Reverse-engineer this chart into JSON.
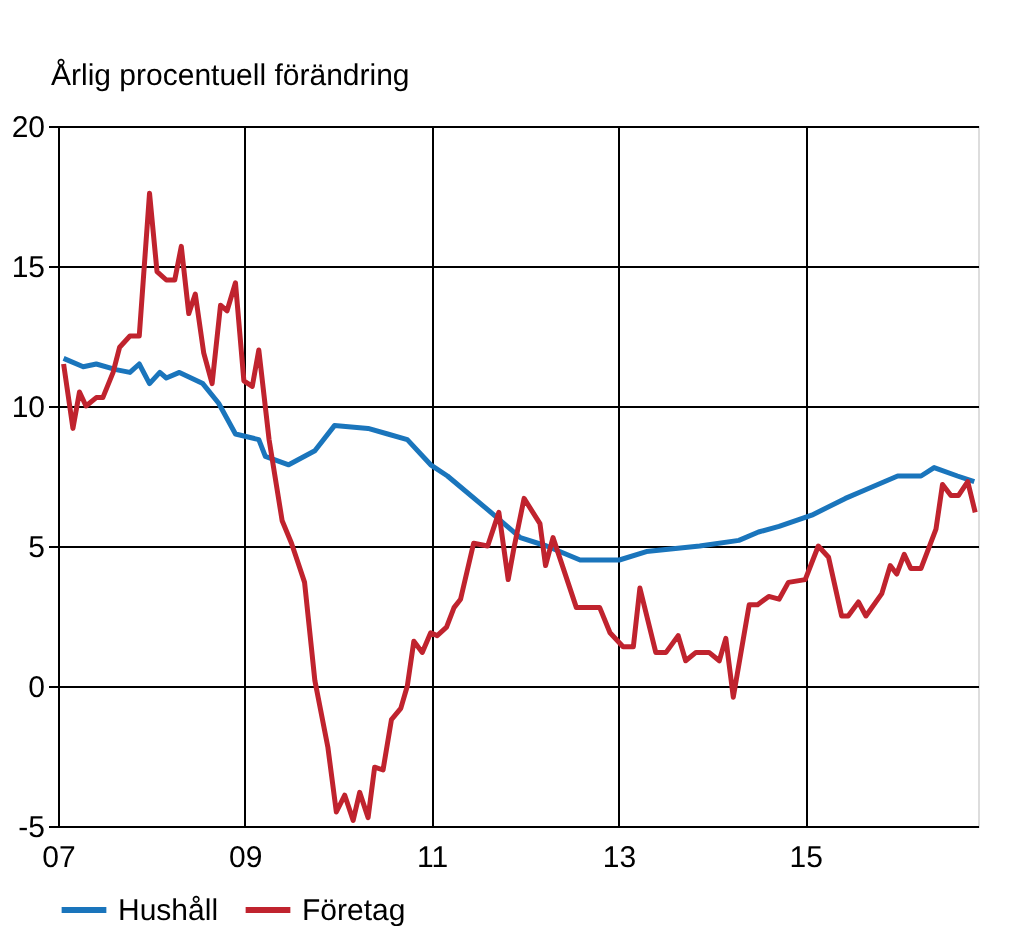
{
  "chart_data": {
    "type": "line",
    "ylabel": "Årlig procentuell förändring",
    "xlim": [
      7,
      16.85
    ],
    "xticks": [
      {
        "value": 7,
        "label": "07"
      },
      {
        "value": 9,
        "label": "09"
      },
      {
        "value": 11,
        "label": "11"
      },
      {
        "value": 13,
        "label": "13"
      },
      {
        "value": 15,
        "label": "15"
      }
    ],
    "ylim": [
      -5,
      20
    ],
    "yticks": [
      -5,
      0,
      5,
      10,
      15,
      20
    ],
    "grid": true,
    "legend": "bottom",
    "marker": "none",
    "line_style": "solid",
    "series": [
      {
        "name": "Hushåll",
        "color": "#1a75bc",
        "x": [
          7.06,
          7.27,
          7.41,
          7.62,
          7.77,
          7.87,
          7.98,
          8.09,
          8.16,
          8.3,
          8.55,
          8.72,
          8.9,
          9.15,
          9.22,
          9.47,
          9.75,
          9.96,
          10.32,
          10.53,
          10.74,
          10.99,
          11.17,
          11.6,
          11.95,
          12.23,
          12.59,
          13.01,
          13.3,
          13.87,
          14.29,
          14.5,
          14.72,
          15.07,
          15.43,
          15.64,
          15.99,
          16.24,
          16.38,
          16.63,
          16.81
        ],
        "values": [
          11.7,
          11.4,
          11.5,
          11.3,
          11.2,
          11.5,
          10.8,
          11.2,
          11.0,
          11.2,
          10.8,
          10.1,
          9.0,
          8.8,
          8.2,
          7.9,
          8.4,
          9.3,
          9.2,
          9.0,
          8.8,
          7.9,
          7.5,
          6.3,
          5.3,
          5.0,
          4.5,
          4.5,
          4.8,
          5.0,
          5.2,
          5.5,
          5.7,
          6.1,
          6.7,
          7.0,
          7.5,
          7.5,
          7.8,
          7.5,
          7.3
        ]
      },
      {
        "name": "Företag",
        "color": "#c0232e",
        "x": [
          7.06,
          7.16,
          7.23,
          7.3,
          7.41,
          7.48,
          7.59,
          7.66,
          7.77,
          7.87,
          7.98,
          8.06,
          8.16,
          8.25,
          8.32,
          8.4,
          8.47,
          8.56,
          8.65,
          8.74,
          8.81,
          8.9,
          8.99,
          9.08,
          9.15,
          9.26,
          9.4,
          9.5,
          9.57,
          9.64,
          9.75,
          9.89,
          9.98,
          10.07,
          10.16,
          10.23,
          10.32,
          10.39,
          10.48,
          10.57,
          10.67,
          10.74,
          10.81,
          10.9,
          10.99,
          11.06,
          11.16,
          11.24,
          11.31,
          11.45,
          11.6,
          11.72,
          11.82,
          11.88,
          11.99,
          12.16,
          12.22,
          12.3,
          12.55,
          12.8,
          12.91,
          13.05,
          13.16,
          13.23,
          13.4,
          13.51,
          13.64,
          13.72,
          13.83,
          13.97,
          14.08,
          14.15,
          14.23,
          14.4,
          14.49,
          14.61,
          14.72,
          14.82,
          15.0,
          15.14,
          15.25,
          15.39,
          15.46,
          15.57,
          15.65,
          15.82,
          15.91,
          15.98,
          16.06,
          16.13,
          16.24,
          16.4,
          16.47,
          16.56,
          16.64,
          16.74,
          16.82
        ],
        "values": [
          11.5,
          9.2,
          10.5,
          10.0,
          10.3,
          10.3,
          11.2,
          12.1,
          12.5,
          12.5,
          17.6,
          14.8,
          14.5,
          14.5,
          15.7,
          13.3,
          14.0,
          11.9,
          10.8,
          13.6,
          13.4,
          14.4,
          10.9,
          10.7,
          12.0,
          8.8,
          5.9,
          5.1,
          4.4,
          3.7,
          0.2,
          -2.2,
          -4.5,
          -3.9,
          -4.8,
          -3.8,
          -4.7,
          -2.9,
          -3.0,
          -1.2,
          -0.8,
          0.0,
          1.6,
          1.2,
          1.9,
          1.8,
          2.1,
          2.8,
          3.1,
          5.1,
          5.0,
          6.2,
          3.8,
          4.9,
          6.7,
          5.8,
          4.3,
          5.3,
          2.8,
          2.8,
          1.9,
          1.4,
          1.4,
          3.5,
          1.2,
          1.2,
          1.8,
          0.9,
          1.2,
          1.2,
          0.9,
          1.7,
          -0.4,
          2.9,
          2.9,
          3.2,
          3.1,
          3.7,
          3.8,
          5.0,
          4.6,
          2.5,
          2.5,
          3.0,
          2.5,
          3.3,
          4.3,
          4.0,
          4.7,
          4.2,
          4.2,
          5.6,
          7.2,
          6.8,
          6.8,
          7.3,
          6.2
        ]
      }
    ]
  }
}
